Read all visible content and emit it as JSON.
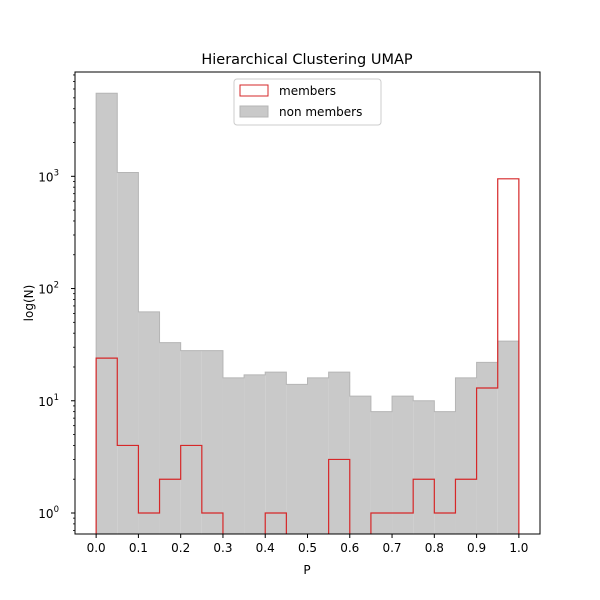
{
  "chart_data": {
    "type": "histogram",
    "title": "Hierarchical Clustering UMAP",
    "xlabel": "P",
    "ylabel": "log(N)",
    "yscale": "log",
    "xlim": [
      -0.05,
      1.05
    ],
    "ylim": [
      0.65,
      8500
    ],
    "bin_width": 0.05,
    "bin_edges": [
      0.0,
      0.05,
      0.1,
      0.15,
      0.2,
      0.25,
      0.3,
      0.35,
      0.4,
      0.45,
      0.5,
      0.55,
      0.6,
      0.65,
      0.7,
      0.75,
      0.8,
      0.85,
      0.9,
      0.95,
      1.0
    ],
    "x_ticks": [
      "0.0",
      "0.1",
      "0.2",
      "0.3",
      "0.4",
      "0.5",
      "0.6",
      "0.7",
      "0.8",
      "0.9",
      "1.0"
    ],
    "x_tick_values": [
      0.0,
      0.1,
      0.2,
      0.3,
      0.4,
      0.5,
      0.6,
      0.7,
      0.8,
      0.9,
      1.0
    ],
    "y_ticks": [
      {
        "value": 1,
        "base": "10",
        "exp": "0"
      },
      {
        "value": 10,
        "base": "10",
        "exp": "1"
      },
      {
        "value": 100,
        "base": "10",
        "exp": "2"
      },
      {
        "value": 1000,
        "base": "10",
        "exp": "3"
      }
    ],
    "legend_position": "top-center",
    "series": [
      {
        "name": "non members",
        "style": "filled",
        "color": "#c9c9c9",
        "edge_color": "#b5b5b5",
        "values": [
          5500,
          1080,
          62,
          33,
          28,
          28,
          16,
          17,
          18,
          14,
          16,
          18,
          11,
          8,
          11,
          10,
          8,
          16,
          22,
          34
        ]
      },
      {
        "name": "members",
        "style": "step",
        "color": "#d62728",
        "values": [
          24,
          4,
          1,
          2,
          4,
          1,
          0,
          0,
          1,
          0,
          0,
          3,
          0,
          1,
          1,
          2,
          1,
          2,
          13,
          950
        ]
      }
    ]
  }
}
